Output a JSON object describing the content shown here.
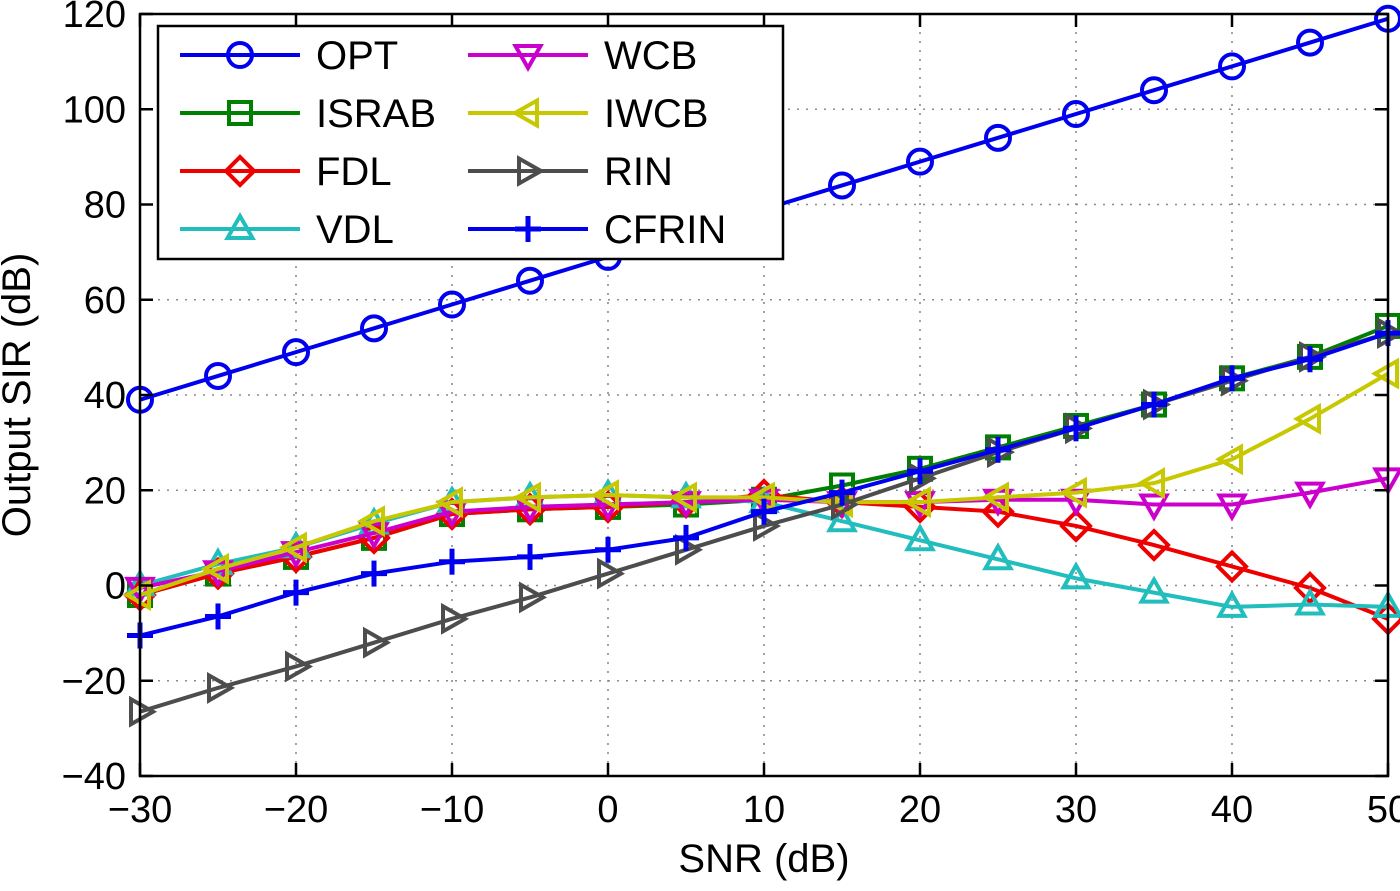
{
  "chart_data": {
    "type": "line",
    "title": "",
    "xlabel": "SNR (dB)",
    "ylabel": "Output SIR (dB)",
    "xlim": [
      -30,
      50
    ],
    "ylim": [
      -40,
      120
    ],
    "xticks": [
      -30,
      -20,
      -10,
      0,
      10,
      20,
      30,
      40,
      50
    ],
    "xtick_labels": [
      "−30",
      "−20",
      "−10",
      "0",
      "10",
      "20",
      "30",
      "40",
      "50"
    ],
    "yticks": [
      -40,
      -20,
      0,
      20,
      40,
      60,
      80,
      100,
      120
    ],
    "ytick_labels": [
      "−40",
      "−20",
      "0",
      "20",
      "40",
      "60",
      "80",
      "100",
      "120"
    ],
    "grid": "dotted",
    "grid_color": "#8c8c8c",
    "axis_color": "#000000",
    "legend": {
      "position": "top-left",
      "columns": 2,
      "order": "column-major"
    },
    "x": [
      -30,
      -25,
      -20,
      -15,
      -10,
      -5,
      0,
      5,
      10,
      15,
      20,
      25,
      30,
      35,
      40,
      45,
      50
    ],
    "series": [
      {
        "name": "OPT",
        "color": "#0000EE",
        "marker": "circle",
        "values": [
          39,
          44,
          49,
          54,
          59,
          64,
          69,
          74,
          79,
          84,
          89,
          94,
          99,
          104,
          109,
          114,
          119
        ]
      },
      {
        "name": "ISRAB",
        "color": "#008000",
        "marker": "square",
        "values": [
          -2,
          2.5,
          6,
          10,
          15,
          16,
          16.5,
          17,
          18,
          21,
          24.5,
          29,
          33.5,
          38,
          43.5,
          48,
          54.5
        ]
      },
      {
        "name": "FDL",
        "color": "#EE0000",
        "marker": "diamond",
        "values": [
          -2,
          2.5,
          6,
          10,
          15,
          16,
          16.5,
          17.5,
          19,
          17.5,
          16.5,
          15.5,
          12.5,
          8.5,
          4,
          -0.5,
          -7
        ]
      },
      {
        "name": "VDL",
        "color": "#22BDBD",
        "marker": "triangle-up",
        "values": [
          0,
          4.5,
          8,
          13,
          17.5,
          18.5,
          19,
          18.5,
          17.5,
          13.5,
          9.5,
          5.5,
          1.5,
          -1.5,
          -4.5,
          -4,
          -4.5
        ]
      },
      {
        "name": "WCB",
        "color": "#CC00CC",
        "marker": "triangle-down",
        "values": [
          -0.5,
          3,
          7,
          11,
          15.5,
          16.5,
          17,
          17.5,
          18,
          17.5,
          17.5,
          18,
          18,
          17,
          17,
          19.5,
          22.5
        ]
      },
      {
        "name": "IWCB",
        "color": "#C8C800",
        "marker": "triangle-left",
        "values": [
          -2,
          3.5,
          8,
          13.5,
          17.5,
          18.5,
          19,
          18.5,
          18.5,
          17.5,
          17.5,
          18.5,
          19.5,
          21.5,
          26.5,
          35,
          44.5
        ]
      },
      {
        "name": "RIN",
        "color": "#4D4D4D",
        "marker": "triangle-right",
        "values": [
          -26.5,
          -21.5,
          -17,
          -12,
          -7,
          -2.5,
          2.5,
          7.5,
          12.5,
          17,
          22.5,
          28,
          33,
          38,
          43,
          48,
          53
        ]
      },
      {
        "name": "CFRIN",
        "color": "#0000EE",
        "marker": "plus",
        "values": [
          -10.5,
          -6.5,
          -1.5,
          2.5,
          5,
          6,
          7.5,
          10,
          15.5,
          19.5,
          24,
          28.5,
          33,
          38,
          43.5,
          47.5,
          53
        ]
      }
    ]
  }
}
